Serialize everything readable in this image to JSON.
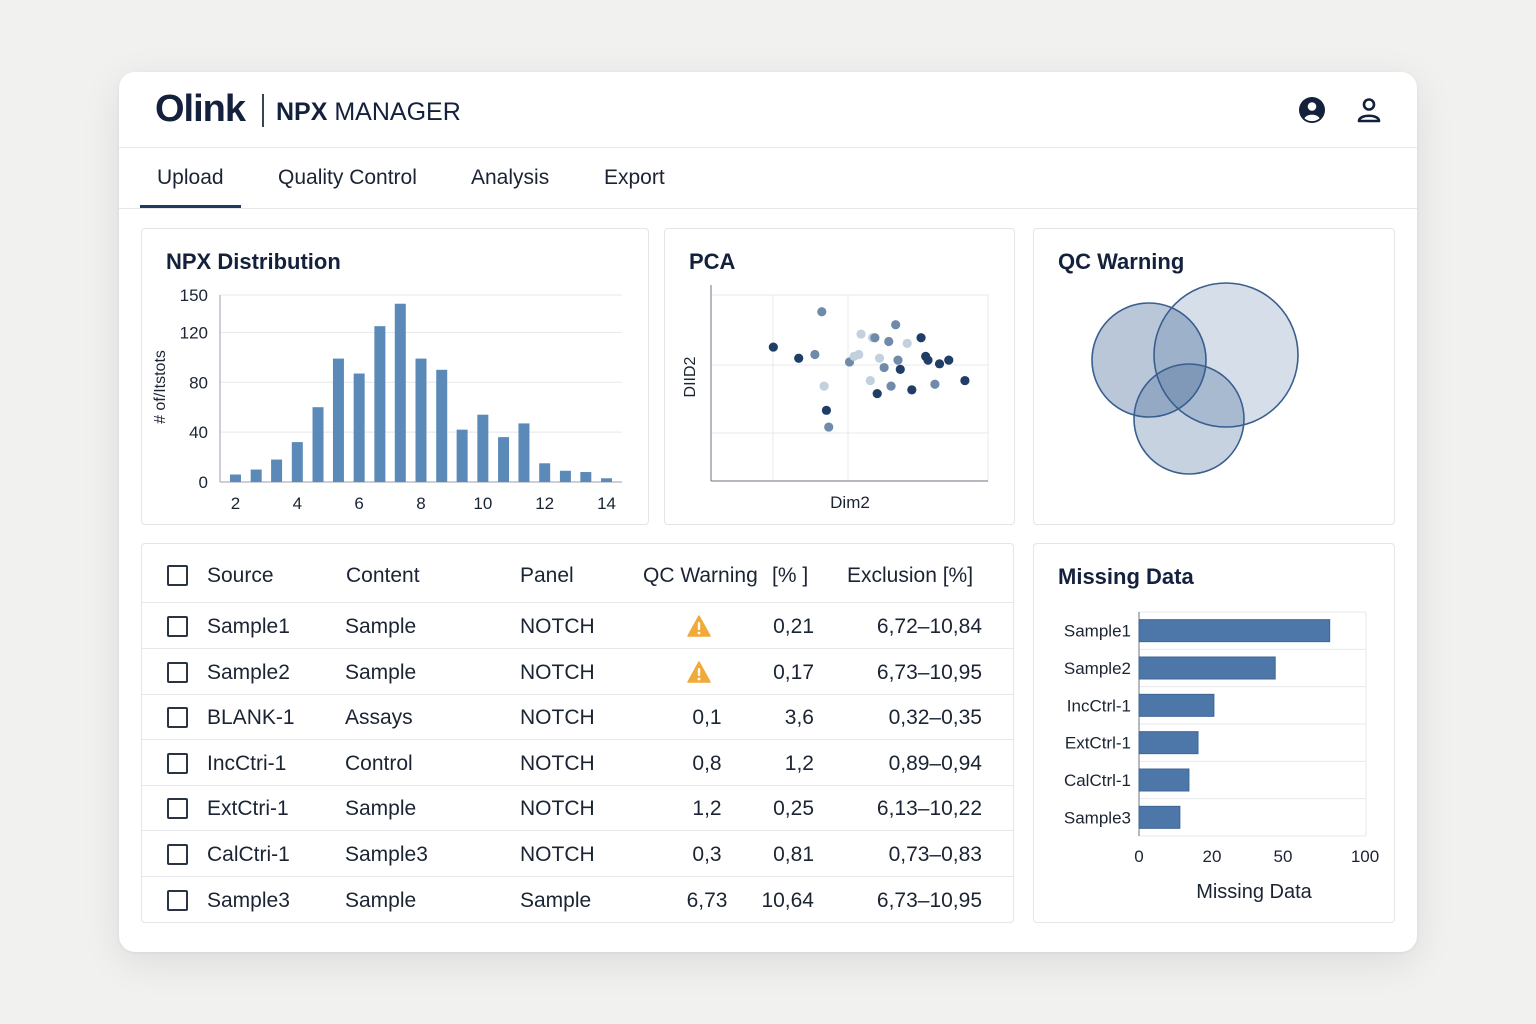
{
  "header": {
    "logo": "Olink",
    "app_name_bold": "NPX",
    "app_name_rest": " MANAGER",
    "icons": [
      "account-circle-icon",
      "user-icon"
    ]
  },
  "nav": {
    "tabs": [
      {
        "label": "Upload",
        "active": true
      },
      {
        "label": "Quality Control",
        "active": false
      },
      {
        "label": "Analysis",
        "active": false
      },
      {
        "label": "Export",
        "active": false
      }
    ]
  },
  "npx": {
    "title": "NPX Distribution",
    "chart_data": {
      "type": "bar",
      "title": "NPX Distribution",
      "ylabel": "# of/Itstots",
      "xlabel": "",
      "x_ticks": [
        2,
        4,
        6,
        8,
        10,
        12,
        14
      ],
      "y_ticks": [
        0,
        40,
        80,
        120,
        150
      ],
      "xlim": [
        1.5,
        14.5
      ],
      "ylim": [
        0,
        150
      ],
      "x": [
        2,
        2.67,
        3.33,
        4,
        4.67,
        5.33,
        6,
        6.67,
        7.33,
        8,
        8.67,
        9.33,
        10,
        10.67,
        11.33,
        12,
        12.67,
        13.33,
        14
      ],
      "values": [
        6,
        10,
        18,
        32,
        60,
        99,
        87,
        125,
        143,
        99,
        90,
        42,
        54,
        36,
        47,
        15,
        9,
        8,
        3
      ]
    }
  },
  "pca": {
    "title": "PCA",
    "chart_data": {
      "type": "scatter",
      "title": "PCA",
      "xlabel": "Dim2",
      "ylabel": "DIID2",
      "points": [
        {
          "x": 1.35,
          "y": 3.6,
          "shade": "dark"
        },
        {
          "x": 1.9,
          "y": 3.3,
          "shade": "dark"
        },
        {
          "x": 2.25,
          "y": 3.4,
          "shade": "mid"
        },
        {
          "x": 2.4,
          "y": 4.55,
          "shade": "mid"
        },
        {
          "x": 2.45,
          "y": 2.55,
          "shade": "light"
        },
        {
          "x": 2.5,
          "y": 1.9,
          "shade": "dark"
        },
        {
          "x": 2.55,
          "y": 1.45,
          "shade": "mid"
        },
        {
          "x": 3.0,
          "y": 3.2,
          "shade": "mid"
        },
        {
          "x": 3.1,
          "y": 3.35,
          "shade": "light"
        },
        {
          "x": 3.2,
          "y": 3.4,
          "shade": "light"
        },
        {
          "x": 3.25,
          "y": 3.95,
          "shade": "light"
        },
        {
          "x": 3.5,
          "y": 3.85,
          "shade": "light"
        },
        {
          "x": 3.55,
          "y": 3.85,
          "shade": "mid"
        },
        {
          "x": 3.45,
          "y": 2.7,
          "shade": "light"
        },
        {
          "x": 3.6,
          "y": 2.35,
          "shade": "dark"
        },
        {
          "x": 3.65,
          "y": 3.3,
          "shade": "light"
        },
        {
          "x": 3.75,
          "y": 3.05,
          "shade": "mid"
        },
        {
          "x": 3.85,
          "y": 3.75,
          "shade": "mid"
        },
        {
          "x": 3.9,
          "y": 2.55,
          "shade": "mid"
        },
        {
          "x": 4.0,
          "y": 4.2,
          "shade": "mid"
        },
        {
          "x": 4.05,
          "y": 3.25,
          "shade": "mid"
        },
        {
          "x": 4.1,
          "y": 3.0,
          "shade": "dark"
        },
        {
          "x": 4.25,
          "y": 3.7,
          "shade": "light"
        },
        {
          "x": 4.35,
          "y": 2.45,
          "shade": "dark"
        },
        {
          "x": 4.55,
          "y": 3.85,
          "shade": "dark"
        },
        {
          "x": 4.65,
          "y": 3.35,
          "shade": "dark"
        },
        {
          "x": 4.7,
          "y": 3.25,
          "shade": "dark"
        },
        {
          "x": 4.85,
          "y": 2.6,
          "shade": "mid"
        },
        {
          "x": 4.95,
          "y": 3.15,
          "shade": "dark"
        },
        {
          "x": 5.15,
          "y": 3.25,
          "shade": "dark"
        },
        {
          "x": 5.5,
          "y": 2.7,
          "shade": "dark"
        }
      ],
      "xlim": [
        0,
        6
      ],
      "ylim": [
        0,
        5
      ]
    }
  },
  "qc": {
    "title": "QC Warning",
    "circles": [
      "set-a",
      "set-b",
      "set-c"
    ]
  },
  "table": {
    "headers": [
      "Source",
      "Content",
      "Panel",
      "QC Warning",
      "[% ]",
      "Exclusion  [%]"
    ],
    "rows": [
      {
        "source": "Sample1",
        "content": "Sample",
        "panel": "NOTCH",
        "warn": "",
        "warning_icon": true,
        "pct": "0,21",
        "excl": "6,72–10,84"
      },
      {
        "source": "Sample2",
        "content": "Sample",
        "panel": "NOTCH",
        "warn": "",
        "warning_icon": true,
        "pct": "0,17",
        "excl": "6,73–10,95"
      },
      {
        "source": "BLANK-1",
        "content": "Assays",
        "panel": "NOTCH",
        "warn": "0,1",
        "warning_icon": false,
        "pct": "3,6",
        "excl": "0,32–0,35"
      },
      {
        "source": "IncCtri-1",
        "content": "Control",
        "panel": "NOTCH",
        "warn": "0,8",
        "warning_icon": false,
        "pct": "1,2",
        "excl": "0,89–0,94"
      },
      {
        "source": "ExtCtri-1",
        "content": "Sample",
        "panel": "NOTCH",
        "warn": "1,2",
        "warning_icon": false,
        "pct": "0,25",
        "excl": "6,13–10,22"
      },
      {
        "source": "CalCtri-1",
        "content": "Sample3",
        "panel": "NOTCH",
        "warn": "0,3",
        "warning_icon": false,
        "pct": "0,81",
        "excl": "0,73–0,83"
      },
      {
        "source": "Sample3",
        "content": "Sample",
        "panel": "Sample",
        "warn": "6,73",
        "warning_icon": false,
        "pct": "10,64",
        "excl": "6,73–10,95"
      }
    ]
  },
  "missing": {
    "title": "Missing Data",
    "chart_data": {
      "type": "bar",
      "orientation": "horizontal",
      "title": "Missing Data",
      "xlabel": "Missing Data",
      "categories": [
        "Sample1",
        "Sample2",
        "IncCtrl-1",
        "ExtCtrl-1",
        "CalCtrl-1",
        "Sample3"
      ],
      "values": [
        84,
        60,
        33,
        26,
        22,
        18
      ],
      "x_ticks": [
        "0",
        "20",
        "50",
        "100"
      ],
      "xlim": [
        0,
        100
      ]
    }
  },
  "colors": {
    "bar": "#5b8ab8",
    "bar_dark": "#4e77a9",
    "dot_dark": "#1f3d66",
    "dot_mid": "#6f8ba9",
    "dot_light": "#c3d0de",
    "warning": "#f1a93a",
    "navy": "#14213d"
  }
}
